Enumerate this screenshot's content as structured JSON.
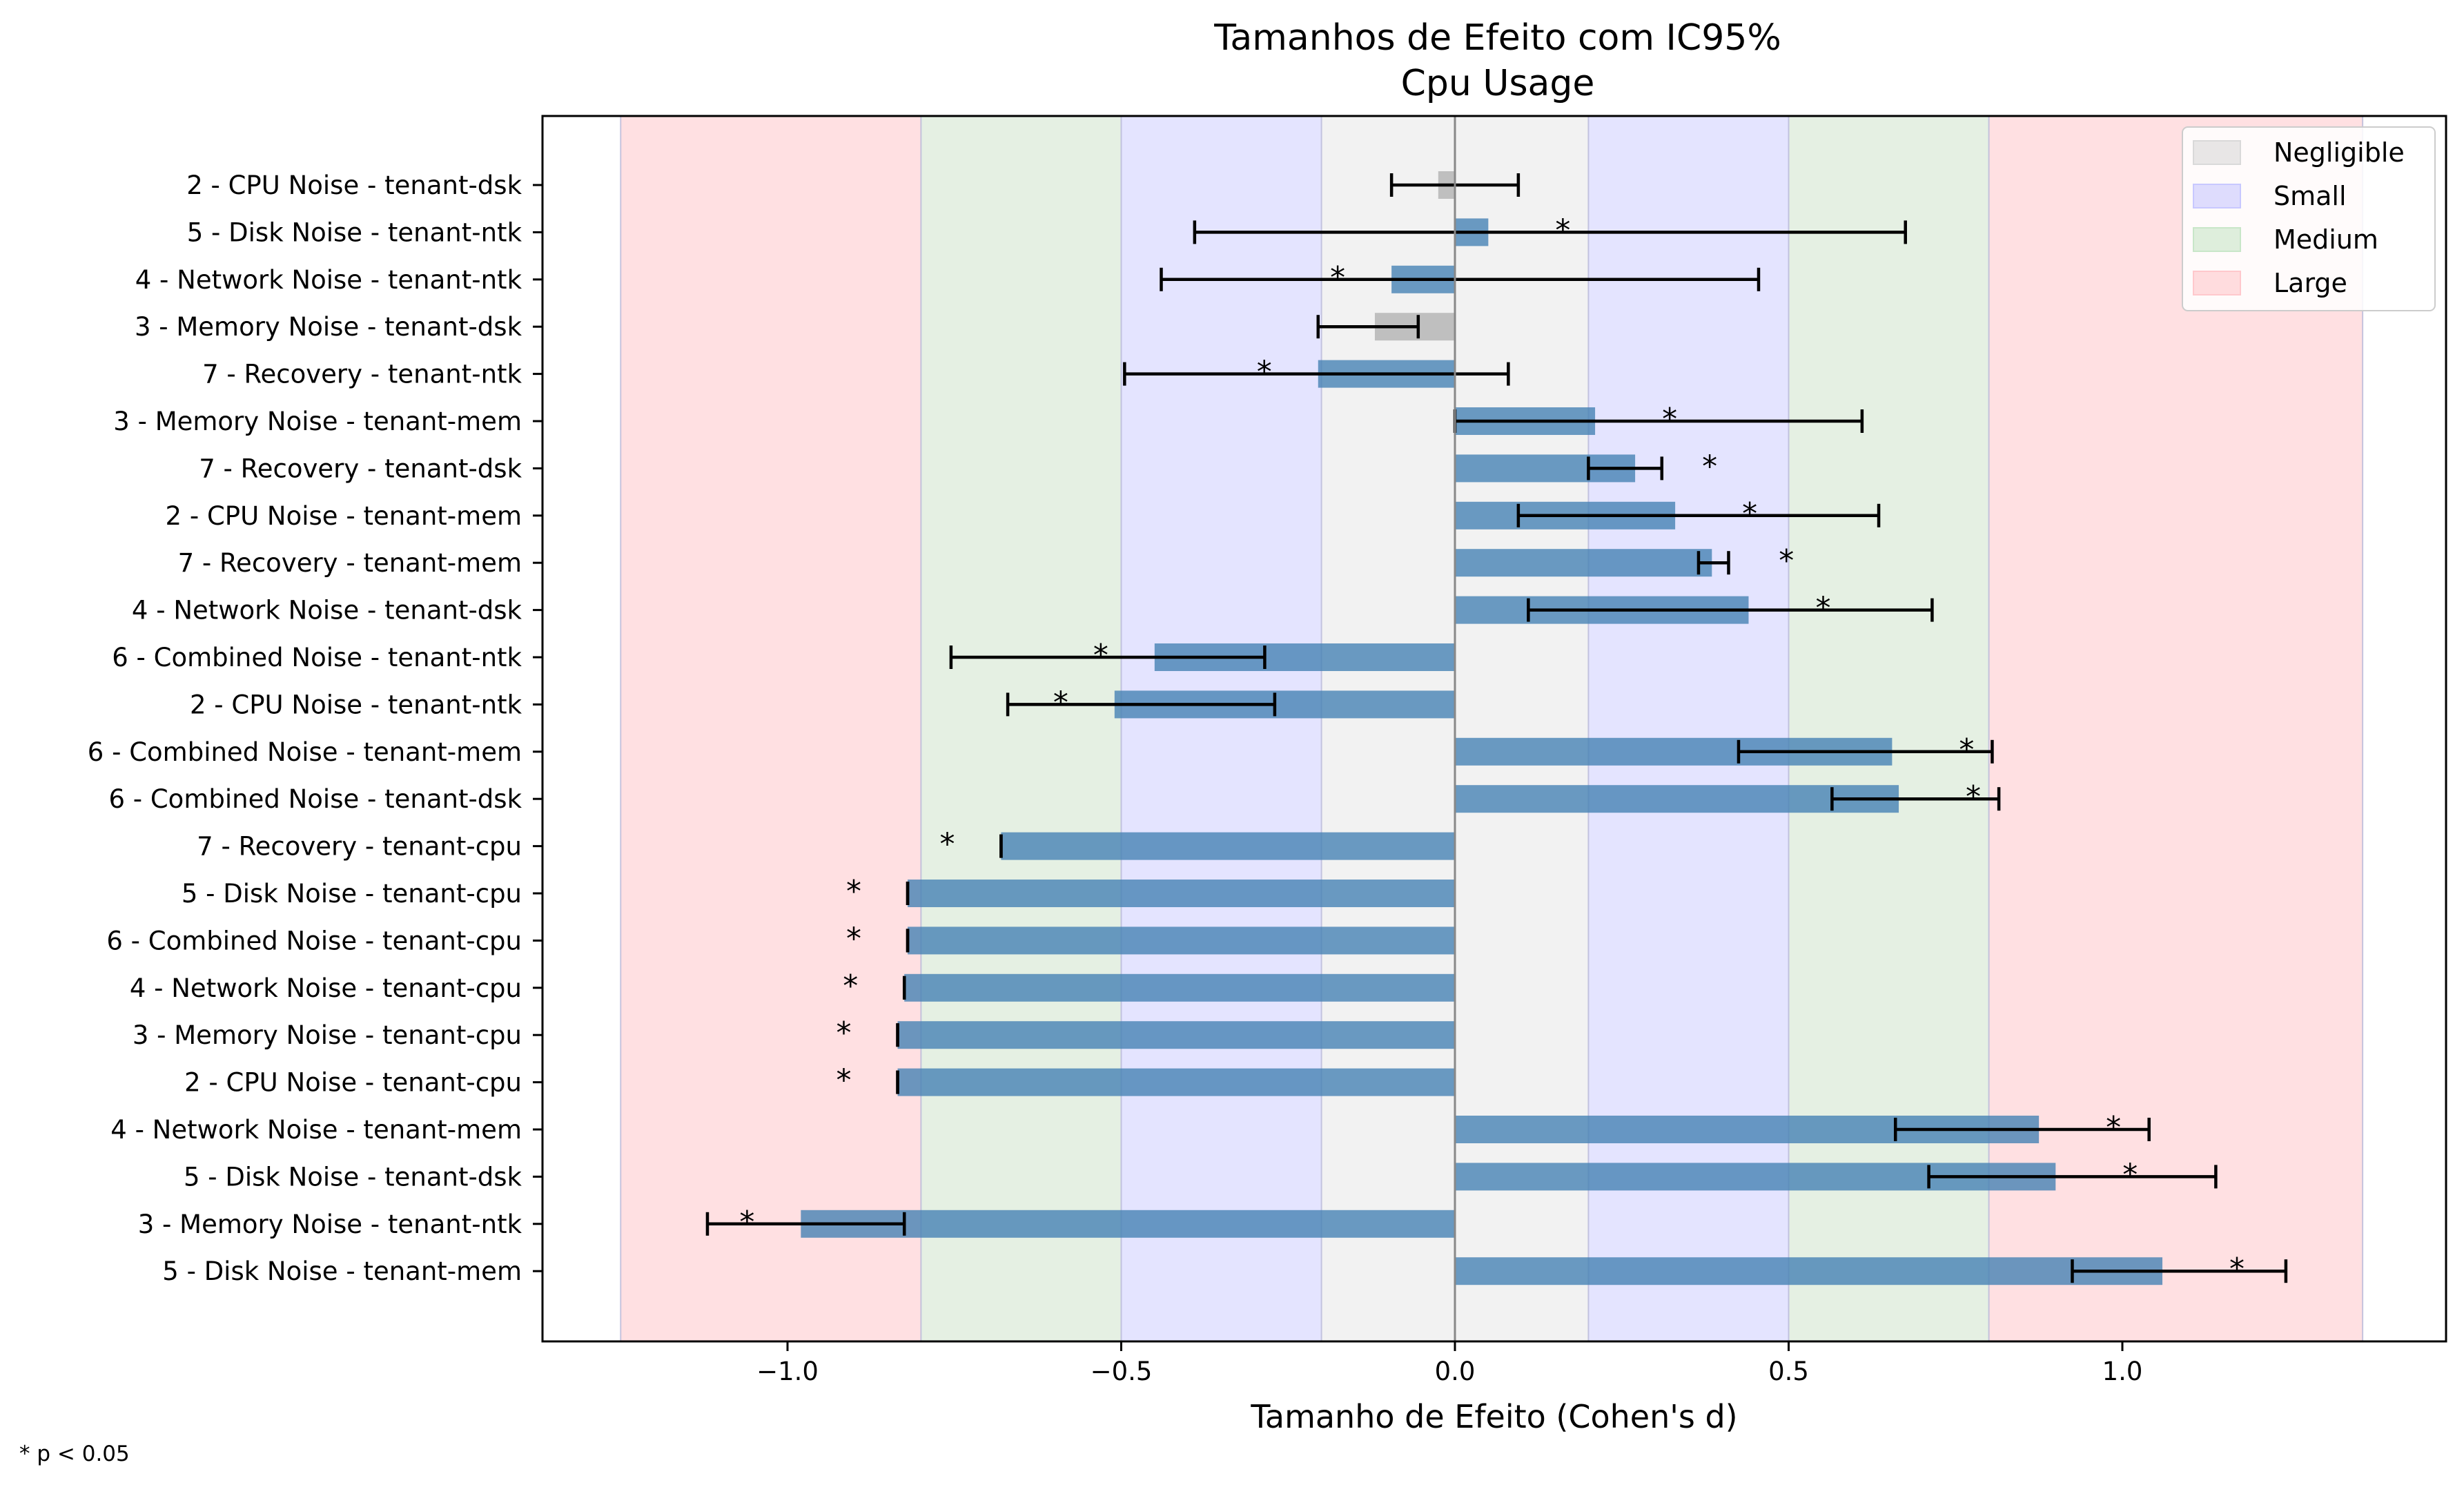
{
  "chart_data": {
    "type": "bar",
    "orientation": "horizontal",
    "title": "Tamanhos de Efeito com IC95%",
    "subtitle": "Cpu Usage",
    "xlabel": "Tamanho de Efeito (Cohen's d)",
    "ylabel": "",
    "xlim": [
      -1.37,
      1.5
    ],
    "xticks": [
      -1.0,
      -0.5,
      0.0,
      0.5,
      1.0
    ],
    "xtick_labels": [
      "−1.0",
      "−0.5",
      "0.0",
      "0.5",
      "1.0"
    ],
    "grid": false,
    "legend_position": "top-right",
    "legend": [
      {
        "label": "Negligible",
        "color": "#d9d9d9"
      },
      {
        "label": "Small",
        "color": "#c8c8ff"
      },
      {
        "label": "Medium",
        "color": "#c8e6c8"
      },
      {
        "label": "Large",
        "color": "#ffc8cc"
      }
    ],
    "effect_bands": [
      {
        "category": "Large",
        "from": -1.25,
        "to": -0.8,
        "color": "#ffe0e2"
      },
      {
        "category": "Medium",
        "from": -0.8,
        "to": -0.5,
        "color": "#e5f0e3"
      },
      {
        "category": "Small",
        "from": -0.5,
        "to": -0.2,
        "color": "#e4e4ff"
      },
      {
        "category": "Negligible",
        "from": -0.2,
        "to": 0.2,
        "color": "#f2f2f2"
      },
      {
        "category": "Small",
        "from": 0.2,
        "to": 0.5,
        "color": "#e4e4ff"
      },
      {
        "category": "Medium",
        "from": 0.5,
        "to": 0.8,
        "color": "#e5f0e3"
      },
      {
        "category": "Large",
        "from": 0.8,
        "to": 1.36,
        "color": "#ffe0e2"
      }
    ],
    "categories": [
      "2 - CPU Noise - tenant-dsk",
      "5 - Disk Noise - tenant-ntk",
      "4 - Network Noise - tenant-ntk",
      "3 - Memory Noise - tenant-dsk",
      "7 - Recovery - tenant-ntk",
      "3 - Memory Noise - tenant-mem",
      "7 - Recovery - tenant-dsk",
      "2 - CPU Noise - tenant-mem",
      "7 - Recovery - tenant-mem",
      "4 - Network Noise - tenant-dsk",
      "6 - Combined Noise - tenant-ntk",
      "2 - CPU Noise - tenant-ntk",
      "6 - Combined Noise - tenant-mem",
      "6 - Combined Noise - tenant-dsk",
      "7 - Recovery - tenant-cpu",
      "5 - Disk Noise - tenant-cpu",
      "6 - Combined Noise - tenant-cpu",
      "4 - Network Noise - tenant-cpu",
      "3 - Memory Noise - tenant-cpu",
      "2 - CPU Noise - tenant-cpu",
      "4 - Network Noise - tenant-mem",
      "5 - Disk Noise - tenant-dsk",
      "3 - Memory Noise - tenant-ntk",
      "5 - Disk Noise - tenant-mem"
    ],
    "values": [
      -0.025,
      0.05,
      -0.095,
      -0.12,
      -0.205,
      0.21,
      0.27,
      0.33,
      0.385,
      0.44,
      -0.45,
      -0.51,
      0.655,
      0.665,
      -0.68,
      -0.82,
      -0.82,
      -0.825,
      -0.835,
      -0.835,
      0.875,
      0.9,
      -0.98,
      1.06
    ],
    "ci_low": [
      -0.095,
      -0.39,
      -0.44,
      -0.205,
      -0.495,
      0.0,
      0.2,
      0.095,
      0.365,
      0.11,
      -0.755,
      -0.67,
      0.425,
      0.565,
      -0.68,
      -0.82,
      -0.82,
      -0.825,
      -0.835,
      -0.835,
      0.66,
      0.71,
      -1.12,
      0.925
    ],
    "ci_high": [
      0.095,
      0.675,
      0.455,
      -0.055,
      0.08,
      0.61,
      0.31,
      0.635,
      0.41,
      0.715,
      -0.285,
      -0.27,
      0.805,
      0.815,
      -0.68,
      -0.82,
      -0.82,
      -0.825,
      -0.835,
      -0.835,
      1.04,
      1.14,
      -0.825,
      1.245
    ],
    "significant": [
      false,
      true,
      true,
      false,
      true,
      true,
      true,
      true,
      true,
      true,
      true,
      true,
      true,
      true,
      true,
      true,
      true,
      true,
      true,
      true,
      true,
      true,
      true,
      true
    ],
    "bar_color_significant": "#4682b4",
    "bar_color_not_significant": "#a9a9a9",
    "significance_marker": "*",
    "footnote": "* p < 0.05"
  }
}
